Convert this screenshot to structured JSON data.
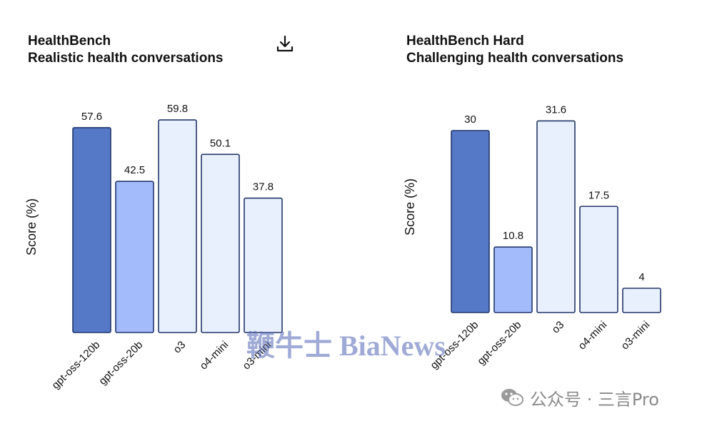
{
  "toolbar": {
    "download_icon": "download-icon"
  },
  "colors": {
    "gpt_oss_120b": "#5579C7",
    "gpt_oss_20b": "#A4BBFB",
    "light": "#E9F0FD",
    "stroke": "#22366B"
  },
  "chart_data": [
    {
      "type": "bar",
      "title": "HealthBench",
      "subtitle": "Realistic health conversations",
      "ylabel": "Score (%)",
      "categories": [
        "gpt-oss-120b",
        "gpt-oss-20b",
        "o3",
        "o4-mini",
        "o3-mini"
      ],
      "values": [
        57.6,
        42.5,
        59.8,
        50.1,
        37.8
      ],
      "ylim": [
        0,
        60
      ],
      "grid": false
    },
    {
      "type": "bar",
      "title": "HealthBench Hard",
      "subtitle": "Challenging health conversations",
      "ylabel": "Score (%)",
      "categories": [
        "gpt-oss-120b",
        "gpt-oss-20b",
        "o3",
        "o4-mini",
        "o3-mini"
      ],
      "values": [
        30,
        10.8,
        31.6,
        17.5,
        4
      ],
      "ylim": [
        0,
        32
      ],
      "grid": false
    }
  ],
  "watermark": {
    "text": "鞭牛士 BiaNews"
  },
  "footer": {
    "account": "公众号 · 三言Pro"
  }
}
